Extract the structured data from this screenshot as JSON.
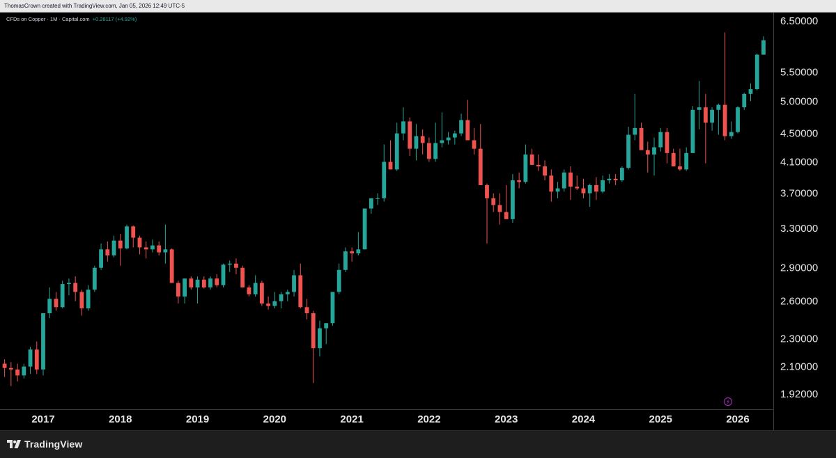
{
  "header": {
    "caption": "ThomasCrown created with TradingView.com, Jan 05, 2026 12:49 UTC-5"
  },
  "legend": {
    "symbol": "CFDs on Copper · 1M · Capital.com",
    "change": "+0.28117 (+4.92%)"
  },
  "footer": {
    "brand": "TradingView",
    "logo_icon": "tradingview-logo-icon"
  },
  "colors": {
    "background": "#000000",
    "up": "#26a69a",
    "down": "#ef5350",
    "axis_text": "#e6e6e6",
    "axis_line": "#3a3a3a",
    "marker": "#9c27b0"
  },
  "chart_data": {
    "type": "candlestick",
    "interval": "1M",
    "yscale": "log",
    "ylim": [
      1.85,
      6.6
    ],
    "y_ticks": [
      {
        "value": 6.5,
        "label": "6.50000"
      },
      {
        "value": 5.5,
        "label": "5.50000"
      },
      {
        "value": 5.0,
        "label": "5.00000"
      },
      {
        "value": 4.5,
        "label": "4.50000"
      },
      {
        "value": 4.1,
        "label": "4.10000"
      },
      {
        "value": 3.7,
        "label": "3.70000"
      },
      {
        "value": 3.3,
        "label": "3.30000"
      },
      {
        "value": 2.9,
        "label": "2.90000"
      },
      {
        "value": 2.6,
        "label": "2.60000"
      },
      {
        "value": 2.3,
        "label": "2.30000"
      },
      {
        "value": 2.1,
        "label": "2.10000"
      },
      {
        "value": 1.92,
        "label": "1.92000"
      }
    ],
    "x_ticks": [
      "2017",
      "2018",
      "2019",
      "2020",
      "2021",
      "2022",
      "2023",
      "2024",
      "2025",
      "2026"
    ],
    "start_month": "2016-07",
    "grid": false,
    "candles": [
      [
        2.12,
        2.15,
        2.03,
        2.09
      ],
      [
        2.09,
        2.13,
        1.97,
        2.08
      ],
      [
        2.08,
        2.12,
        2.0,
        2.04
      ],
      [
        2.04,
        2.12,
        2.02,
        2.1
      ],
      [
        2.1,
        2.24,
        2.05,
        2.22
      ],
      [
        2.22,
        2.28,
        2.05,
        2.08
      ],
      [
        2.08,
        2.5,
        2.04,
        2.5
      ],
      [
        2.5,
        2.72,
        2.46,
        2.62
      ],
      [
        2.62,
        2.68,
        2.52,
        2.55
      ],
      [
        2.55,
        2.78,
        2.54,
        2.75
      ],
      [
        2.75,
        2.8,
        2.65,
        2.76
      ],
      [
        2.76,
        2.82,
        2.6,
        2.68
      ],
      [
        2.68,
        2.7,
        2.48,
        2.54
      ],
      [
        2.54,
        2.74,
        2.52,
        2.7
      ],
      [
        2.7,
        2.92,
        2.68,
        2.9
      ],
      [
        2.9,
        3.14,
        2.88,
        3.08
      ],
      [
        3.08,
        3.16,
        2.96,
        3.02
      ],
      [
        3.02,
        3.22,
        3.0,
        3.17
      ],
      [
        3.17,
        3.24,
        2.92,
        3.09
      ],
      [
        3.09,
        3.34,
        3.08,
        3.32
      ],
      [
        3.32,
        3.33,
        3.1,
        3.2
      ],
      [
        3.2,
        3.22,
        3.03,
        3.1
      ],
      [
        3.1,
        3.16,
        2.99,
        3.08
      ],
      [
        3.08,
        3.18,
        3.05,
        3.12
      ],
      [
        3.12,
        3.16,
        3.02,
        3.05
      ],
      [
        3.05,
        3.34,
        2.94,
        3.08
      ],
      [
        3.08,
        3.09,
        2.76,
        2.76
      ],
      [
        2.76,
        2.78,
        2.58,
        2.64
      ],
      [
        2.64,
        2.8,
        2.58,
        2.8
      ],
      [
        2.8,
        2.82,
        2.7,
        2.72
      ],
      [
        2.72,
        2.82,
        2.58,
        2.79
      ],
      [
        2.79,
        2.82,
        2.71,
        2.72
      ],
      [
        2.72,
        2.82,
        2.7,
        2.8
      ],
      [
        2.8,
        2.84,
        2.72,
        2.74
      ],
      [
        2.74,
        2.94,
        2.72,
        2.93
      ],
      [
        2.93,
        2.97,
        2.86,
        2.94
      ],
      [
        2.94,
        2.99,
        2.84,
        2.9
      ],
      [
        2.9,
        2.92,
        2.72,
        2.72
      ],
      [
        2.72,
        2.74,
        2.64,
        2.66
      ],
      [
        2.66,
        2.83,
        2.64,
        2.76
      ],
      [
        2.76,
        2.78,
        2.56,
        2.58
      ],
      [
        2.58,
        2.64,
        2.53,
        2.56
      ],
      [
        2.56,
        2.68,
        2.54,
        2.6
      ],
      [
        2.6,
        2.68,
        2.54,
        2.66
      ],
      [
        2.66,
        2.7,
        2.6,
        2.68
      ],
      [
        2.68,
        2.88,
        2.64,
        2.83
      ],
      [
        2.83,
        2.94,
        2.54,
        2.55
      ],
      [
        2.55,
        2.62,
        2.45,
        2.5
      ],
      [
        2.5,
        2.52,
        1.99,
        2.23
      ],
      [
        2.23,
        2.44,
        2.17,
        2.38
      ],
      [
        2.38,
        2.42,
        2.26,
        2.42
      ],
      [
        2.42,
        2.64,
        2.4,
        2.68
      ],
      [
        2.68,
        2.94,
        2.66,
        2.88
      ],
      [
        2.88,
        3.1,
        2.86,
        3.06
      ],
      [
        3.06,
        3.1,
        2.96,
        3.04
      ],
      [
        3.04,
        3.26,
        3.02,
        3.08
      ],
      [
        3.08,
        3.52,
        3.08,
        3.52
      ],
      [
        3.52,
        3.64,
        3.46,
        3.64
      ],
      [
        3.64,
        3.7,
        3.56,
        3.64
      ],
      [
        3.64,
        4.34,
        3.6,
        4.1
      ],
      [
        4.1,
        4.4,
        4.0,
        4.0
      ],
      [
        4.0,
        4.66,
        3.98,
        4.5
      ],
      [
        4.5,
        4.9,
        4.4,
        4.68
      ],
      [
        4.68,
        4.74,
        4.18,
        4.28
      ],
      [
        4.28,
        4.64,
        4.12,
        4.46
      ],
      [
        4.46,
        4.56,
        4.2,
        4.36
      ],
      [
        4.36,
        4.44,
        4.1,
        4.14
      ],
      [
        4.14,
        4.66,
        4.1,
        4.36
      ],
      [
        4.36,
        4.82,
        4.3,
        4.4
      ],
      [
        4.4,
        4.52,
        4.34,
        4.44
      ],
      [
        4.44,
        4.54,
        4.34,
        4.5
      ],
      [
        4.5,
        4.8,
        4.46,
        4.7
      ],
      [
        4.7,
        5.02,
        4.4,
        4.4
      ],
      [
        4.4,
        4.58,
        4.2,
        4.28
      ],
      [
        4.28,
        4.64,
        3.8,
        3.8
      ],
      [
        3.8,
        3.82,
        3.14,
        3.64
      ],
      [
        3.64,
        3.7,
        3.48,
        3.56
      ],
      [
        3.56,
        3.7,
        3.34,
        3.48
      ],
      [
        3.48,
        3.8,
        3.42,
        3.4
      ],
      [
        3.4,
        3.94,
        3.36,
        3.86
      ],
      [
        3.86,
        3.96,
        3.76,
        3.84
      ],
      [
        3.84,
        4.34,
        3.82,
        4.2
      ],
      [
        4.2,
        4.28,
        4.06,
        4.06
      ],
      [
        4.06,
        4.2,
        3.98,
        4.04
      ],
      [
        4.04,
        4.12,
        3.86,
        3.92
      ],
      [
        3.92,
        4.0,
        3.6,
        3.72
      ],
      [
        3.72,
        3.84,
        3.64,
        3.76
      ],
      [
        3.76,
        4.0,
        3.72,
        3.96
      ],
      [
        3.96,
        4.04,
        3.62,
        3.78
      ],
      [
        3.78,
        3.92,
        3.74,
        3.76
      ],
      [
        3.76,
        3.88,
        3.64,
        3.7
      ],
      [
        3.7,
        3.82,
        3.54,
        3.8
      ],
      [
        3.8,
        3.9,
        3.62,
        3.72
      ],
      [
        3.72,
        3.92,
        3.7,
        3.86
      ],
      [
        3.86,
        3.94,
        3.82,
        3.88
      ],
      [
        3.88,
        3.94,
        3.8,
        3.86
      ],
      [
        3.86,
        4.04,
        3.84,
        4.02
      ],
      [
        4.02,
        4.6,
        4.0,
        4.48
      ],
      [
        4.48,
        5.12,
        4.4,
        4.58
      ],
      [
        4.58,
        4.66,
        4.28,
        4.26
      ],
      [
        4.26,
        4.38,
        3.96,
        4.2
      ],
      [
        4.2,
        4.44,
        3.92,
        4.3
      ],
      [
        4.3,
        4.58,
        4.24,
        4.52
      ],
      [
        4.52,
        4.58,
        4.08,
        4.22
      ],
      [
        4.22,
        4.28,
        4.04,
        4.04
      ],
      [
        4.04,
        4.28,
        3.98,
        4.0
      ],
      [
        4.0,
        4.3,
        3.98,
        4.22
      ],
      [
        4.22,
        4.92,
        4.22,
        4.86
      ],
      [
        4.86,
        5.34,
        4.56,
        4.9
      ],
      [
        4.9,
        5.12,
        4.08,
        4.66
      ],
      [
        4.66,
        4.9,
        4.54,
        4.86
      ],
      [
        4.86,
        4.96,
        4.48,
        4.94
      ],
      [
        4.94,
        6.26,
        4.4,
        4.46
      ],
      [
        4.46,
        4.68,
        4.42,
        4.52
      ],
      [
        4.52,
        4.92,
        4.5,
        4.9
      ],
      [
        4.9,
        5.14,
        4.86,
        5.12
      ],
      [
        5.12,
        5.3,
        5.0,
        5.2
      ],
      [
        5.2,
        5.84,
        5.18,
        5.82
      ],
      [
        5.82,
        6.18,
        5.86,
        6.1
      ]
    ]
  }
}
